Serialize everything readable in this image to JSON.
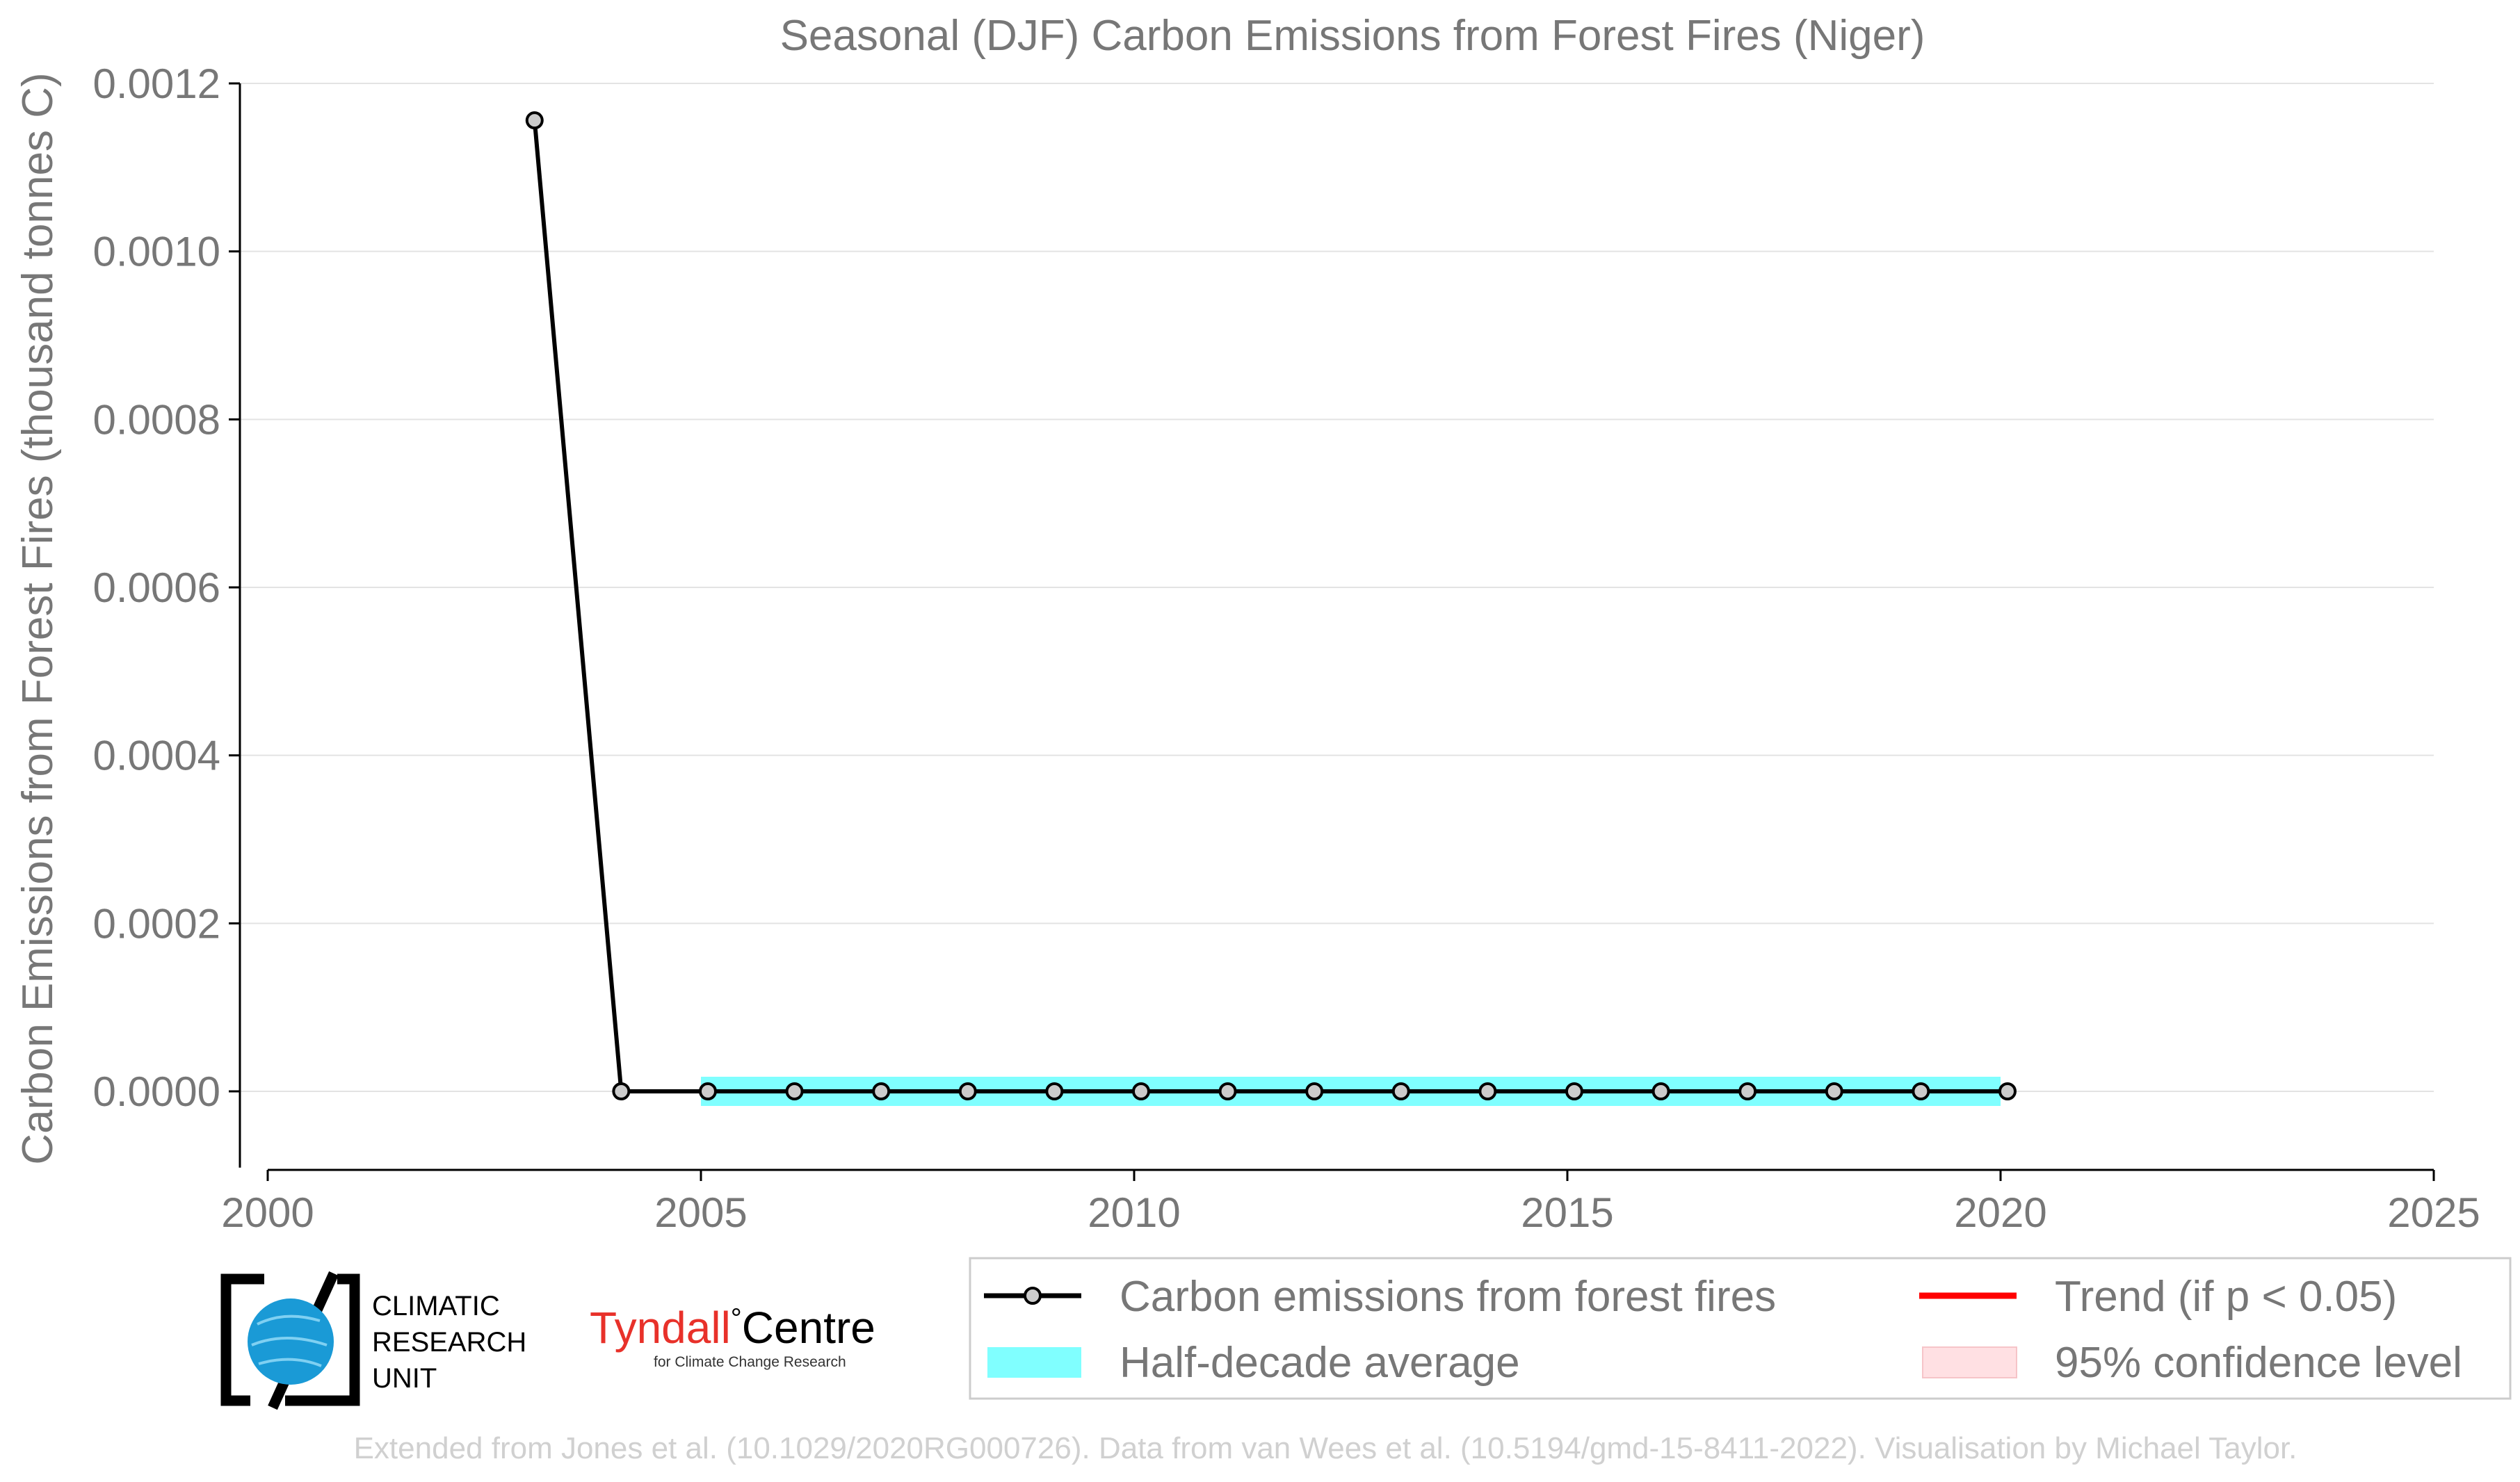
{
  "chart_data": {
    "type": "line",
    "title": "Seasonal (DJF) Carbon Emissions from Forest Fires (Niger)",
    "xlabel": "",
    "ylabel": "Carbon Emissions from Forest Fires (thousand tonnes C)",
    "xlim": [
      2000,
      2025
    ],
    "ylim": [
      -9e-05,
      0.0012
    ],
    "xticks": [
      "2000",
      "2005",
      "2010",
      "2015",
      "2020",
      "2025"
    ],
    "yticks": [
      "0.0000",
      "0.0002",
      "0.0004",
      "0.0006",
      "0.0008",
      "0.0010",
      "0.0012"
    ],
    "grid": "horizontal",
    "series": [
      {
        "name": "Carbon emissions from forest fires",
        "color": "#000000",
        "x": [
          2003,
          2004,
          2005,
          2006,
          2007,
          2008,
          2009,
          2010,
          2011,
          2012,
          2013,
          2014,
          2015,
          2016,
          2017,
          2018,
          2019,
          2020
        ],
        "y": [
          0.001156,
          0,
          0,
          0,
          0,
          0,
          0,
          0,
          0,
          0,
          0,
          0,
          0,
          0,
          0,
          0,
          0,
          0
        ]
      },
      {
        "name": "Half-decade average",
        "color": "#80ffff",
        "segments": [
          {
            "x_start": 2005,
            "x_end": 2010,
            "y": 0
          },
          {
            "x_start": 2010,
            "x_end": 2015,
            "y": 0
          },
          {
            "x_start": 2015,
            "x_end": 2020,
            "y": 0
          }
        ]
      }
    ],
    "legend": {
      "placement": "bottom-right",
      "entries": [
        {
          "label": "Carbon emissions from forest fires",
          "style": "line-marker",
          "color": "#000000"
        },
        {
          "label": "Trend (if p < 0.05)",
          "style": "line",
          "color": "#ff0000"
        },
        {
          "label": "Half-decade average",
          "style": "patch",
          "color": "#80ffff"
        },
        {
          "label": "95% confidence level",
          "style": "patch",
          "color": "#ffe0e3"
        }
      ]
    }
  },
  "logos": {
    "cru": {
      "line1": "CLIMATIC",
      "line2": "RESEARCH",
      "line3": "UNIT",
      "globe_color": "#1a9ad6"
    },
    "tyndall": {
      "main_left": "Tyndall",
      "degree": "°",
      "main_right": "Centre",
      "sub": "for Climate Change Research",
      "accent": "#e8312a"
    }
  },
  "footer": {
    "credit": "Extended from Jones et al. (10.1029/2020RG000726). Data from van Wees et al. (10.5194/gmd-15-8411-2022). Visualisation by Michael Taylor."
  }
}
